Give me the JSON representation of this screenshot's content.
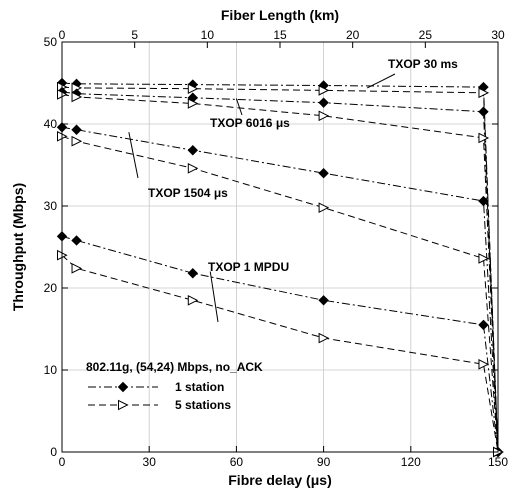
{
  "chart_data": {
    "type": "line",
    "xlabel": "Fibre delay (μs)",
    "x2label": "Fiber Length (km)",
    "ylabel": "Throughput (Mbps)",
    "xlim": [
      0,
      150
    ],
    "x2lim": [
      0,
      30
    ],
    "ylim": [
      0,
      50
    ],
    "x_ticks": [
      "0",
      "30",
      "60",
      "90",
      "120",
      "150"
    ],
    "x2_ticks": [
      "0",
      "5",
      "10",
      "15",
      "20",
      "25",
      "30"
    ],
    "y_ticks": [
      "0",
      "10",
      "20",
      "30",
      "40",
      "50"
    ],
    "grid": true,
    "legend_title": "802.11g, (54,24) Mbps, no_ACK",
    "legend_position": "bottom-left",
    "series": [
      {
        "name": "1 station",
        "group": "TXOP 30 ms",
        "marker": "diamond",
        "dash": "dashdot",
        "x": [
          0,
          5,
          45,
          90,
          145,
          150
        ],
        "y": [
          45.0,
          44.9,
          44.8,
          44.7,
          44.5,
          0
        ]
      },
      {
        "name": "5 stations",
        "group": "TXOP 30 ms",
        "marker": "triangle",
        "dash": "dash",
        "x": [
          0,
          5,
          45,
          90,
          145,
          150
        ],
        "y": [
          44.5,
          44.4,
          44.3,
          44.1,
          43.8,
          0
        ]
      },
      {
        "name": "1 station",
        "group": "TXOP 6016 μs",
        "marker": "diamond",
        "dash": "dashdot",
        "x": [
          0,
          5,
          45,
          90,
          145,
          150
        ],
        "y": [
          43.9,
          43.7,
          43.2,
          42.6,
          41.5,
          0
        ]
      },
      {
        "name": "5 stations",
        "group": "TXOP 6016 μs",
        "marker": "triangle",
        "dash": "dash",
        "x": [
          0,
          5,
          45,
          90,
          145,
          150
        ],
        "y": [
          43.6,
          43.3,
          42.5,
          41.0,
          38.3,
          0
        ]
      },
      {
        "name": "1 station",
        "group": "TXOP 1504 μs",
        "marker": "diamond",
        "dash": "dashdot",
        "x": [
          0,
          5,
          45,
          90,
          145,
          150
        ],
        "y": [
          39.6,
          39.3,
          36.8,
          34.0,
          30.6,
          0
        ]
      },
      {
        "name": "5 stations",
        "group": "TXOP 1504 μs",
        "marker": "triangle",
        "dash": "dash",
        "x": [
          0,
          5,
          45,
          90,
          145,
          150
        ],
        "y": [
          38.5,
          37.9,
          34.6,
          29.8,
          23.6,
          0
        ]
      },
      {
        "name": "1 station",
        "group": "TXOP 1 MPDU",
        "marker": "diamond",
        "dash": "dashdot",
        "x": [
          0,
          5,
          45,
          90,
          145,
          150
        ],
        "y": [
          26.3,
          25.8,
          21.8,
          18.5,
          15.5,
          0
        ]
      },
      {
        "name": "5 stations",
        "group": "TXOP 1 MPDU",
        "marker": "triangle",
        "dash": "dash",
        "x": [
          0,
          5,
          45,
          90,
          145,
          150
        ],
        "y": [
          24.0,
          22.4,
          18.5,
          13.9,
          10.7,
          0
        ]
      }
    ],
    "annotations": [
      {
        "text": "TXOP 30 ms",
        "target_x": 105,
        "target_y": 44.4
      },
      {
        "text": "TXOP 6016 μs",
        "target_x": 60,
        "target_y": 43.1
      },
      {
        "text": "TXOP 1504 μs",
        "target_x": 23,
        "target_y": 39.0
      },
      {
        "text": "TXOP 1 MPDU",
        "target_x": 51,
        "target_y": 22.0
      }
    ]
  }
}
